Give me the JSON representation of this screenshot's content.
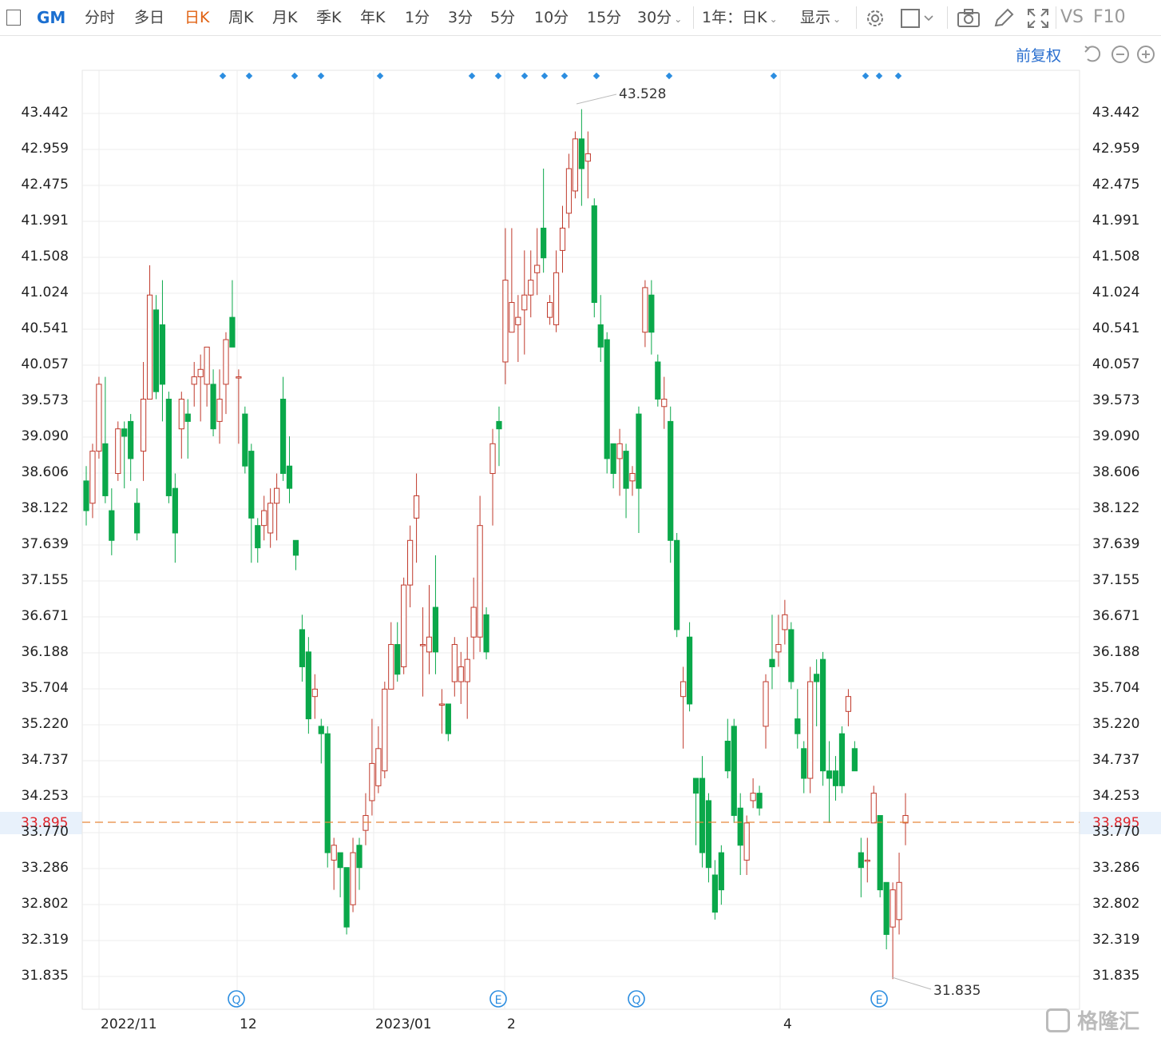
{
  "toolbar": {
    "symbol": "GM",
    "tabs": [
      "分时",
      "多日",
      "日K",
      "周K",
      "月K",
      "季K",
      "年K",
      "1分",
      "3分",
      "5分",
      "10分",
      "15分",
      "30分"
    ],
    "active_tab": "日K",
    "range_select": "1年：日K",
    "display_select": "显示",
    "vs": "VS",
    "f10": "F10"
  },
  "subbar": {
    "adjust": "前复权"
  },
  "accent_color": "#e06010",
  "up_color": "#c0392b",
  "down_color": "#0aa84a",
  "last_price": "33.895",
  "watermark": "格隆汇",
  "chart_data": {
    "type": "candlestick",
    "yticks": [
      "43.442",
      "42.959",
      "42.475",
      "41.991",
      "41.508",
      "41.024",
      "40.541",
      "40.057",
      "39.573",
      "39.090",
      "38.606",
      "38.122",
      "37.639",
      "37.155",
      "36.671",
      "36.188",
      "35.704",
      "35.220",
      "34.737",
      "34.253",
      "33.770",
      "33.286",
      "32.802",
      "32.319",
      "31.835"
    ],
    "xticks": [
      "2022/11",
      "12",
      "2023/01",
      "2",
      "4"
    ],
    "high_label": "43.528",
    "low_label": "31.835",
    "last_label": "33.895",
    "event_markers": [
      "Q",
      "E",
      "Q",
      "E"
    ],
    "ylim": [
      31.835,
      43.442
    ],
    "candles": [
      [
        38.5,
        38.1,
        38.7,
        37.9
      ],
      [
        38.2,
        38.9,
        39.0,
        38.0
      ],
      [
        38.9,
        39.8,
        39.9,
        38.8
      ],
      [
        39.0,
        38.3,
        39.9,
        38.2
      ],
      [
        38.1,
        37.7,
        38.4,
        37.5
      ],
      [
        38.6,
        39.2,
        39.3,
        38.5
      ],
      [
        39.2,
        39.1,
        39.3,
        38.4
      ],
      [
        39.3,
        38.8,
        39.4,
        38.5
      ],
      [
        38.2,
        37.8,
        38.4,
        37.7
      ],
      [
        38.9,
        39.6,
        40.1,
        38.5
      ],
      [
        39.6,
        41.0,
        41.4,
        39.6
      ],
      [
        40.8,
        39.7,
        41.0,
        39.6
      ],
      [
        40.6,
        39.8,
        41.2,
        39.3
      ],
      [
        39.6,
        38.3,
        39.7,
        38.2
      ],
      [
        38.4,
        37.8,
        38.6,
        37.4
      ],
      [
        39.2,
        39.6,
        39.7,
        38.8
      ],
      [
        39.4,
        39.3,
        39.6,
        38.8
      ],
      [
        39.8,
        39.9,
        40.1,
        39.5
      ],
      [
        39.9,
        40.0,
        40.2,
        39.3
      ],
      [
        39.8,
        40.3,
        40.3,
        39.5
      ],
      [
        39.8,
        39.2,
        40.0,
        39.1
      ],
      [
        39.3,
        39.6,
        40.0,
        39.0
      ],
      [
        39.8,
        40.4,
        40.5,
        39.4
      ],
      [
        40.7,
        40.3,
        41.2,
        40.3
      ],
      [
        39.9,
        39.9,
        40.0,
        39.0
      ],
      [
        39.4,
        38.7,
        39.5,
        38.6
      ],
      [
        38.9,
        38.0,
        39.0,
        37.4
      ],
      [
        37.9,
        37.6,
        38.0,
        37.4
      ],
      [
        37.9,
        38.1,
        38.3,
        37.7
      ],
      [
        37.8,
        38.2,
        38.4,
        37.6
      ],
      [
        38.2,
        38.4,
        38.6,
        37.7
      ],
      [
        39.6,
        38.6,
        39.9,
        38.5
      ],
      [
        38.7,
        38.4,
        39.1,
        38.2
      ],
      [
        37.7,
        37.5,
        37.7,
        37.3
      ],
      [
        36.5,
        36.0,
        36.7,
        35.8
      ],
      [
        36.2,
        35.3,
        36.4,
        35.1
      ],
      [
        35.6,
        35.7,
        35.9,
        35.3
      ],
      [
        35.2,
        35.1,
        35.3,
        34.7
      ],
      [
        35.1,
        33.5,
        35.2,
        33.3
      ],
      [
        33.4,
        33.6,
        33.7,
        33.0
      ],
      [
        33.5,
        33.3,
        33.5,
        32.9
      ],
      [
        33.3,
        32.5,
        33.3,
        32.4
      ],
      [
        32.8,
        33.5,
        33.7,
        32.7
      ],
      [
        33.6,
        33.3,
        33.7,
        33.0
      ],
      [
        33.8,
        34.0,
        34.3,
        33.6
      ],
      [
        34.2,
        34.7,
        35.3,
        34.0
      ],
      [
        34.4,
        34.9,
        35.2,
        34.3
      ],
      [
        34.6,
        35.7,
        35.8,
        34.5
      ],
      [
        35.7,
        36.3,
        36.6,
        35.7
      ],
      [
        36.3,
        35.9,
        36.6,
        35.8
      ],
      [
        36.0,
        37.1,
        37.2,
        35.9
      ],
      [
        37.1,
        37.7,
        37.9,
        36.8
      ],
      [
        38.0,
        38.3,
        38.6,
        37.4
      ],
      [
        36.3,
        36.3,
        36.8,
        35.6
      ],
      [
        36.2,
        36.4,
        37.1,
        35.9
      ],
      [
        36.8,
        36.2,
        37.5,
        35.9
      ],
      [
        35.5,
        35.5,
        35.7,
        35.1
      ],
      [
        35.5,
        35.1,
        35.5,
        35.0
      ],
      [
        35.8,
        36.3,
        36.4,
        35.6
      ],
      [
        35.8,
        36.0,
        36.2,
        35.5
      ],
      [
        35.8,
        36.1,
        36.4,
        35.3
      ],
      [
        36.4,
        36.8,
        37.2,
        36.1
      ],
      [
        36.4,
        37.9,
        38.3,
        36.2
      ],
      [
        36.7,
        36.2,
        36.8,
        36.1
      ],
      [
        38.6,
        39.0,
        39.2,
        37.9
      ],
      [
        39.3,
        39.2,
        39.5,
        38.7
      ],
      [
        40.1,
        41.2,
        41.9,
        39.8
      ],
      [
        40.5,
        40.9,
        41.9,
        40.5
      ],
      [
        40.6,
        40.7,
        41.0,
        40.1
      ],
      [
        40.8,
        41.0,
        41.6,
        40.2
      ],
      [
        41.0,
        41.2,
        41.6,
        40.7
      ],
      [
        41.3,
        41.4,
        41.9,
        41.0
      ],
      [
        41.9,
        41.5,
        42.7,
        41.3
      ],
      [
        40.7,
        40.9,
        41.0,
        40.6
      ],
      [
        40.6,
        41.3,
        41.6,
        40.5
      ],
      [
        41.6,
        41.9,
        42.2,
        41.3
      ],
      [
        42.1,
        42.7,
        42.9,
        41.9
      ],
      [
        42.4,
        43.1,
        43.2,
        42.3
      ],
      [
        43.1,
        42.7,
        43.5,
        42.2
      ],
      [
        42.8,
        42.9,
        43.2,
        42.3
      ],
      [
        42.2,
        40.9,
        42.3,
        40.7
      ],
      [
        40.6,
        40.3,
        41.0,
        40.1
      ],
      [
        40.4,
        38.8,
        40.5,
        38.6
      ],
      [
        39.0,
        38.6,
        39.0,
        38.4
      ],
      [
        38.8,
        39.0,
        39.2,
        38.3
      ],
      [
        38.9,
        38.4,
        39.0,
        38.0
      ],
      [
        38.5,
        38.6,
        38.7,
        38.3
      ],
      [
        39.4,
        38.4,
        39.5,
        37.8
      ],
      [
        40.5,
        41.1,
        41.2,
        40.3
      ],
      [
        41.0,
        40.5,
        41.2,
        40.2
      ],
      [
        40.1,
        39.6,
        40.2,
        39.5
      ],
      [
        39.5,
        39.6,
        39.9,
        39.2
      ],
      [
        39.3,
        37.7,
        39.5,
        37.4
      ],
      [
        37.7,
        36.5,
        37.8,
        36.4
      ],
      [
        35.6,
        35.8,
        36.0,
        34.9
      ],
      [
        36.4,
        35.5,
        36.6,
        35.4
      ],
      [
        34.5,
        34.3,
        34.5,
        33.6
      ],
      [
        34.5,
        33.5,
        34.8,
        33.3
      ],
      [
        34.2,
        33.3,
        34.3,
        33.1
      ],
      [
        33.2,
        32.7,
        33.4,
        32.6
      ],
      [
        33.5,
        33.0,
        33.6,
        32.8
      ],
      [
        35.0,
        34.6,
        35.3,
        34.5
      ],
      [
        35.2,
        34.0,
        35.3,
        33.9
      ],
      [
        34.1,
        33.6,
        34.3,
        33.2
      ],
      [
        33.4,
        33.9,
        34.0,
        33.2
      ],
      [
        34.2,
        34.3,
        34.5,
        34.1
      ],
      [
        34.3,
        34.1,
        34.4,
        34.0
      ],
      [
        35.2,
        35.8,
        35.9,
        34.9
      ],
      [
        36.1,
        36.0,
        36.7,
        35.7
      ],
      [
        36.2,
        36.3,
        36.7,
        36.0
      ],
      [
        36.5,
        36.7,
        36.9,
        36.3
      ],
      [
        36.5,
        35.8,
        36.6,
        35.7
      ],
      [
        35.3,
        35.1,
        35.7,
        34.9
      ],
      [
        34.9,
        34.5,
        35.0,
        34.3
      ],
      [
        34.5,
        35.8,
        36.0,
        34.3
      ],
      [
        35.9,
        35.8,
        36.1,
        35.2
      ],
      [
        36.1,
        34.6,
        36.2,
        34.4
      ],
      [
        34.6,
        34.5,
        35.0,
        33.9
      ],
      [
        34.6,
        34.4,
        34.8,
        34.2
      ],
      [
        35.1,
        34.4,
        35.2,
        34.3
      ],
      [
        35.4,
        35.6,
        35.7,
        35.2
      ],
      [
        34.9,
        34.6,
        35.0,
        34.6
      ],
      [
        33.5,
        33.3,
        33.7,
        32.9
      ],
      [
        33.4,
        33.4,
        33.7,
        33.1
      ],
      [
        33.9,
        34.3,
        34.4,
        33.9
      ],
      [
        34.0,
        33.0,
        34.0,
        32.9
      ],
      [
        33.1,
        32.4,
        33.1,
        32.2
      ],
      [
        32.5,
        33.0,
        33.1,
        31.8
      ],
      [
        32.6,
        33.1,
        33.5,
        32.4
      ],
      [
        33.9,
        34.0,
        34.3,
        33.6
      ]
    ]
  }
}
